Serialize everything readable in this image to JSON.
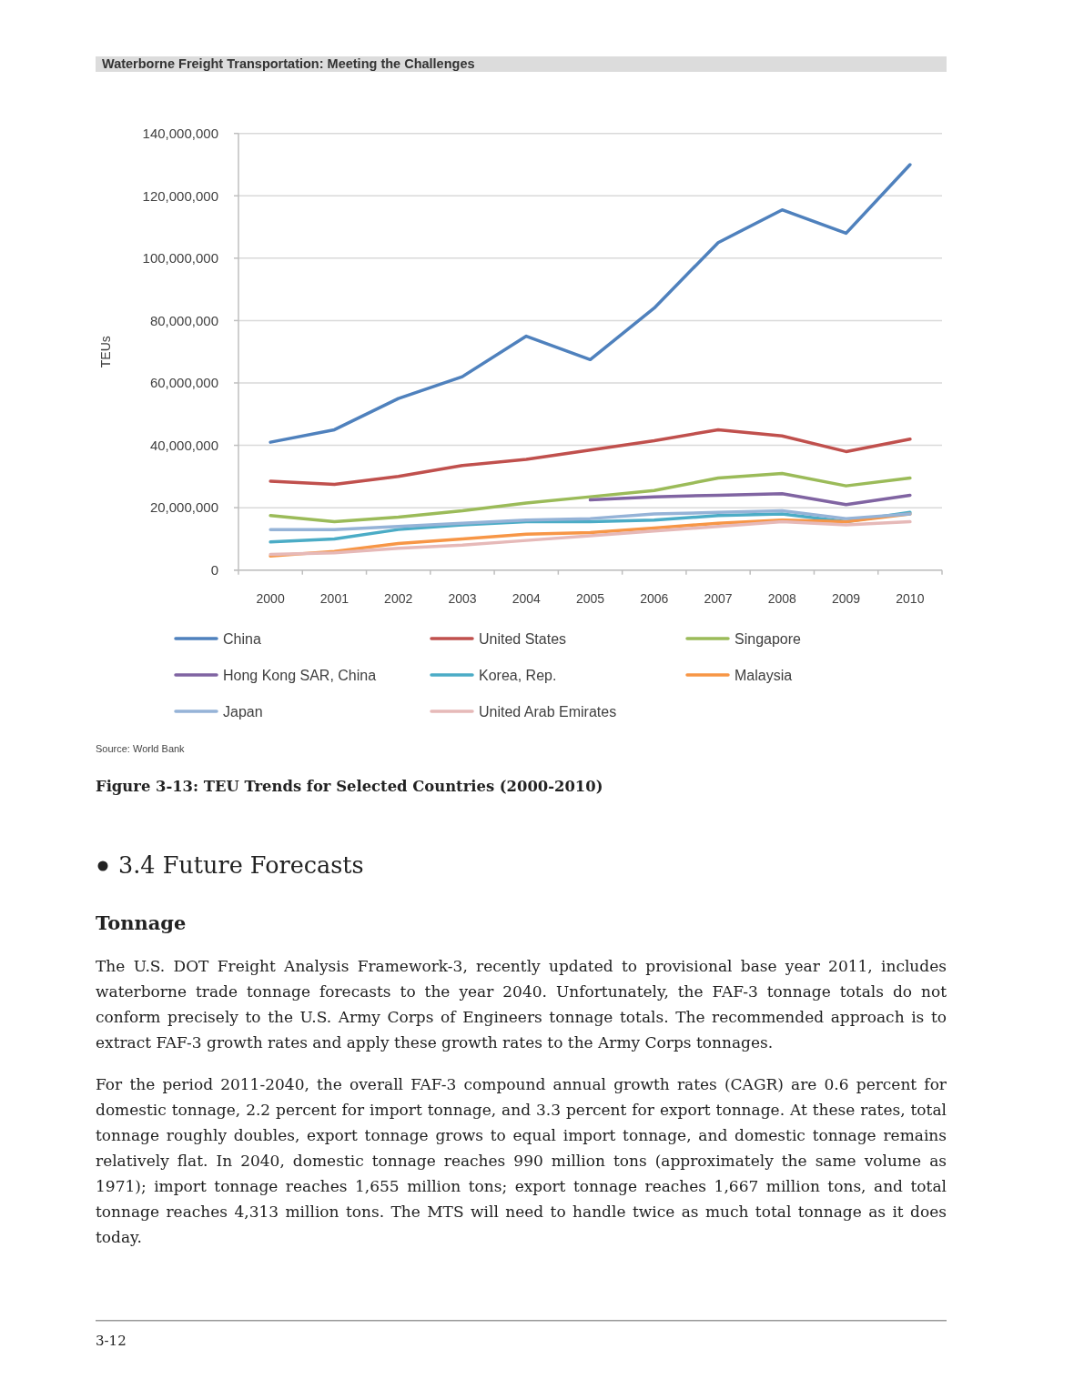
{
  "chart_data": {
    "type": "line",
    "title": "Figure 3-13: TEU Trends for Selected Countries (2000-2010)",
    "ylabel": "TEUs",
    "categories": [
      "2000",
      "2001",
      "2002",
      "2003",
      "2004",
      "2005",
      "2006",
      "2007",
      "2008",
      "2009",
      "2010"
    ],
    "series": [
      {
        "name": "China",
        "color": "#4f81bd",
        "values": [
          41000000,
          45000000,
          55000000,
          62000000,
          75000000,
          67500000,
          84000000,
          105000000,
          115500000,
          108000000,
          130000000
        ]
      },
      {
        "name": "United States",
        "color": "#c0504d",
        "values": [
          28500000,
          27500000,
          30000000,
          33500000,
          35500000,
          38500000,
          41500000,
          45000000,
          43000000,
          38000000,
          42000000
        ]
      },
      {
        "name": "Singapore",
        "color": "#9bbb59",
        "values": [
          17500000,
          15500000,
          17000000,
          19000000,
          21500000,
          23500000,
          25500000,
          29500000,
          31000000,
          27000000,
          29500000
        ]
      },
      {
        "name": "Hong Kong SAR, China",
        "color": "#8064a2",
        "values": [
          null,
          null,
          null,
          null,
          null,
          22500000,
          23500000,
          24000000,
          24500000,
          21000000,
          24000000
        ]
      },
      {
        "name": "Korea, Rep.",
        "color": "#4bacc6",
        "values": [
          9000000,
          10000000,
          13000000,
          14500000,
          15500000,
          15500000,
          16000000,
          17500000,
          18000000,
          15500000,
          18500000
        ]
      },
      {
        "name": "Malaysia",
        "color": "#f79646",
        "values": [
          4500000,
          6000000,
          8500000,
          10000000,
          11500000,
          12000000,
          13500000,
          15000000,
          16000000,
          15500000,
          18000000
        ]
      },
      {
        "name": "Japan",
        "color": "#95b3d7",
        "values": [
          13000000,
          13000000,
          14000000,
          15000000,
          16000000,
          16500000,
          18000000,
          18500000,
          19000000,
          16500000,
          18000000
        ]
      },
      {
        "name": "United Arab Emirates",
        "color": "#e6b9b8",
        "values": [
          5000000,
          5500000,
          7000000,
          8000000,
          9500000,
          11000000,
          12500000,
          14000000,
          15500000,
          14500000,
          15500000
        ]
      }
    ],
    "ylim": [
      0,
      140000000
    ],
    "yticks": [
      {
        "value": 0,
        "label": "0"
      },
      {
        "value": 20000000,
        "label": "20,000,000"
      },
      {
        "value": 40000000,
        "label": "40,000,000"
      },
      {
        "value": 60000000,
        "label": "60,000,000"
      },
      {
        "value": 80000000,
        "label": "80,000,000"
      },
      {
        "value": 100000000,
        "label": "100,000,000"
      },
      {
        "value": 120000000,
        "label": "120,000,000"
      },
      {
        "value": 140000000,
        "label": "140,000,000"
      }
    ],
    "grid": "y",
    "legend": "bottom",
    "annotations": [
      "Waterborne Freight Transportation: Meeting the Challenges",
      "Source: World Bank",
      "3.4 Future Forecasts",
      "Tonnage",
      "The U.S. DOT Freight Analysis Framework-3, recently updated to provisional base year 2011, includes waterborne trade tonnage forecasts to the year 2040. Unfortunately, the FAF-3 tonnage totals do not conform precisely to the U.S. Army Corps of Engineers tonnage totals. The recommended approach is to extract FAF-3 growth rates and apply these growth rates to the Army Corps tonnages.",
      "For the period 2011-2040, the overall FAF-3 compound annual growth rates (CAGR) are 0.6 percent for domestic tonnage, 2.2 percent for import tonnage, and 3.3 percent for export tonnage. At these rates, total tonnage roughly doubles, export tonnage grows to equal import tonnage, and domestic tonnage remains relatively flat. In 2040, domestic tonnage reaches 990 million tons (approximately the same volume as 1971); import tonnage reaches 1,655 million tons; export tonnage reaches 1,667 million tons, and total tonnage reaches 4,313 million tons. The MTS will need to handle twice as much total tonnage as it does today.",
      "3-12"
    ]
  }
}
